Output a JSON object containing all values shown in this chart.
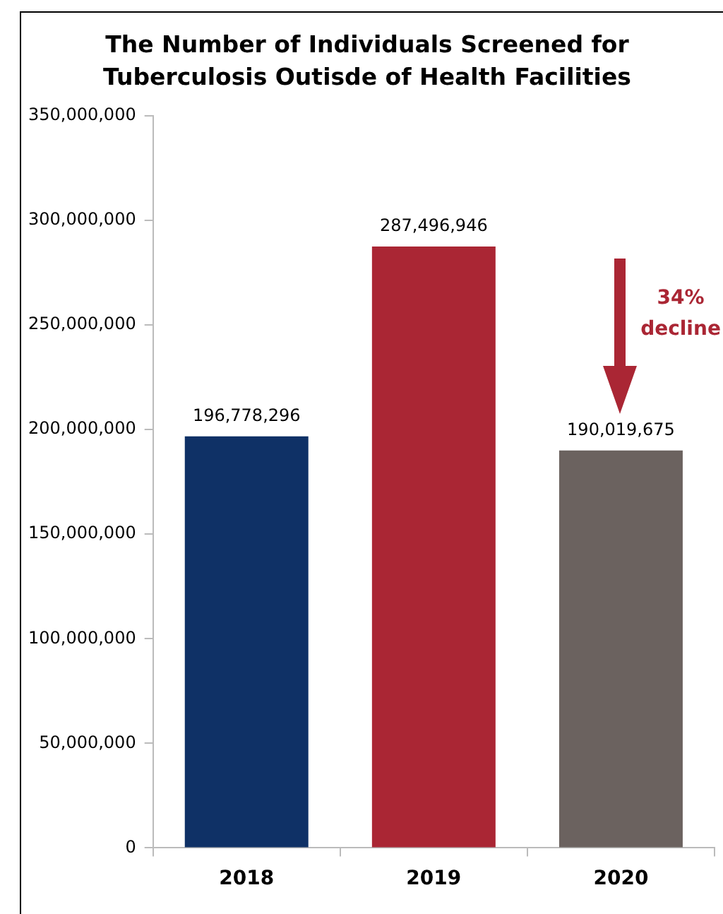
{
  "chart_data": {
    "type": "bar",
    "title": "The Number of Individuals Screened for Tuberculosis Outisde of Health Facilities",
    "categories": [
      "2018",
      "2019",
      "2020"
    ],
    "values": [
      196778296,
      287496946,
      190019675
    ],
    "colors": [
      "#0f3166",
      "#aa2634",
      "#6b625f"
    ],
    "ylim": [
      0,
      350000000
    ],
    "yticks": [
      0,
      {
        "value": 50000000,
        "label": "50,000,000"
      },
      {
        "value": 100000000,
        "label": "100,000,000"
      },
      {
        "value": 150000000,
        "label": "150,000,000"
      },
      {
        "value": 200000000,
        "label": "200,000,000"
      },
      {
        "value": 250000000,
        "label": "250,000,000"
      },
      {
        "value": 300000000,
        "label": "300,000,000"
      },
      {
        "value": 350000000,
        "label": "350,000,000"
      }
    ],
    "grid": false,
    "legend": false,
    "value_labels": [
      "196,778,296",
      "287,496,946",
      "190,019,675"
    ],
    "annotations": [
      "34% decline"
    ]
  }
}
